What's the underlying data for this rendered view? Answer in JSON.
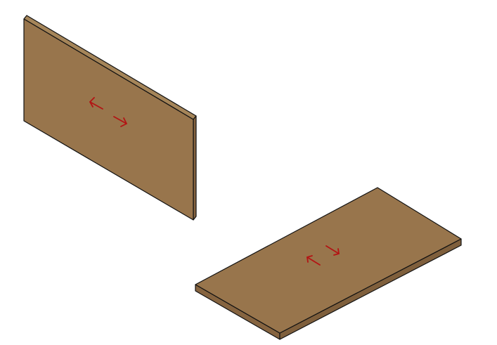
{
  "colors": {
    "background": "#ffffff",
    "panel_face": "#98754c",
    "panel_edge": "#866440",
    "panel_top_edge": "#a58559",
    "outline": "#111111",
    "grain_arrow": "#b31414"
  },
  "panels": [
    {
      "id": "upright-panel",
      "orientation": "vertical",
      "grain_arrows": "horizontal"
    },
    {
      "id": "flat-panel",
      "orientation": "horizontal",
      "grain_arrows": "along-length"
    }
  ]
}
